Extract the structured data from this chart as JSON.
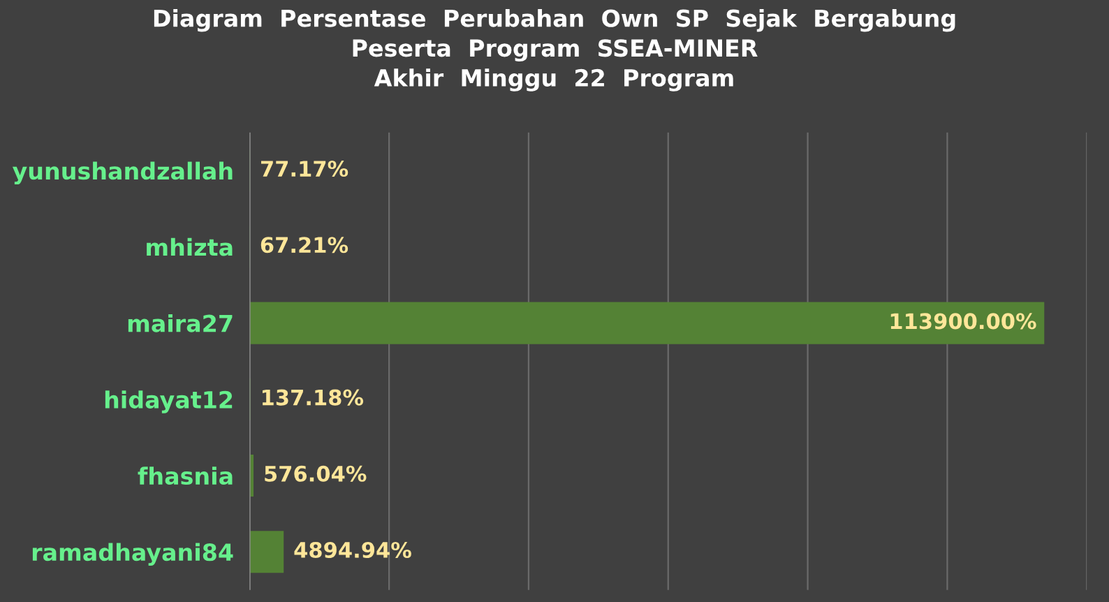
{
  "chart_data": {
    "type": "bar",
    "orientation": "horizontal",
    "title": "Diagram  Persentase  Perubahan  Own  SP  Sejak  Bergabung\nPeserta  Program  SSEA-MINER\nAkhir  Minggu  22  Program",
    "categories": [
      "yunushandzallah",
      "mhizta",
      "maira27",
      "hidayat12",
      "fhasnia",
      "ramadhayani84"
    ],
    "values": [
      77.17,
      67.21,
      113900,
      137.18,
      576.04,
      4894.94
    ],
    "value_labels": [
      "77.17%",
      "67.21%",
      "113900.00%",
      "137.18%",
      "576.04%",
      "4894.94%"
    ],
    "color": "#548235",
    "xlim": [
      0,
      120000
    ],
    "xticks": [
      {
        "value": 0,
        "label": null
      },
      {
        "value": 20000,
        "label": null
      },
      {
        "value": 40000,
        "label": null
      },
      {
        "value": 60000,
        "label": null
      },
      {
        "value": 80000,
        "label": null
      },
      {
        "value": 100000,
        "label": null
      },
      {
        "value": 120000,
        "label": null
      }
    ],
    "grid": "x",
    "tick_labels": "y"
  }
}
